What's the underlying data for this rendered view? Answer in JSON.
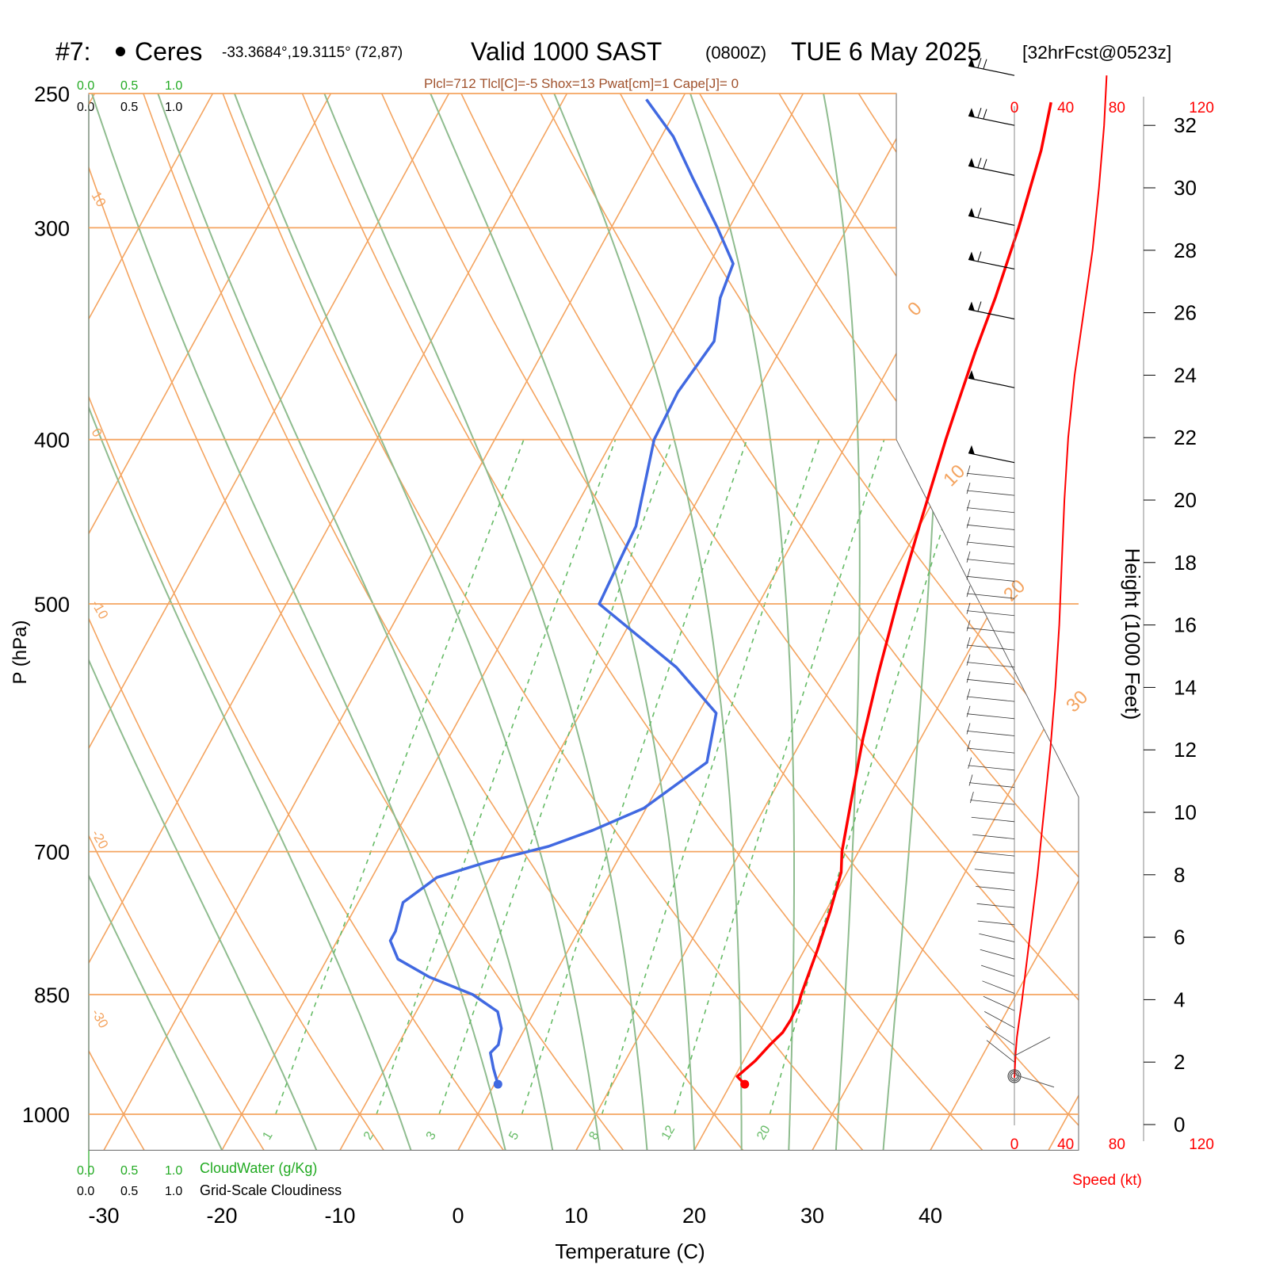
{
  "header": {
    "station_id": "#7:",
    "station_name": "Ceres",
    "coords": "-33.3684°,19.3115° (72,87)",
    "valid": "Valid 1000 SAST",
    "zulu": "(0800Z)",
    "date": "TUE 6 May 2025",
    "forecast": "[32hrFcst@0523z]",
    "indices": "Plcl=712 Tlcl[C]=-5 Shox=13 Pwat[cm]=1 Cape[J]= 0"
  },
  "colors": {
    "temperature": "#ff0000",
    "dewpoint": "#4169e1",
    "isotherm": "#f4a460",
    "dry_adiabat": "#f4a460",
    "moist_adiabat": "#8fbc8f",
    "mixing_ratio": "#66bb66",
    "speed": "#ff0000",
    "cloudwater": "#22aa22",
    "indices": "#a0522d"
  },
  "cloud_scales": {
    "top_green": [
      "0.0",
      "0.5",
      "1.0"
    ],
    "top_black": [
      "0.0",
      "0.5",
      "1.0"
    ],
    "bottom_green": [
      "0.0",
      "0.5",
      "1.0"
    ],
    "bottom_black": [
      "0.0",
      "0.5",
      "1.0"
    ],
    "cloudwater_label": "CloudWater (g/Kg)",
    "cloudiness_label": "Grid-Scale Cloudiness"
  },
  "chart_data": {
    "type": "line",
    "chart": "skew-T log-P sounding",
    "xlabel": "Temperature (C)",
    "ylabel": "P (hPa)",
    "right_ylabel": "Height (1000 Feet)",
    "speed_label": "Speed (kt)",
    "x_ticks": [
      "-30",
      "-20",
      "-10",
      "0",
      "10",
      "20",
      "30",
      "40"
    ],
    "x_tick_values": [
      -30,
      -20,
      -10,
      0,
      10,
      20,
      30,
      40
    ],
    "pressure_ticks": [
      "250",
      "300",
      "400",
      "500",
      "700",
      "850",
      "1000"
    ],
    "pressure_tick_values": [
      250,
      300,
      400,
      500,
      700,
      850,
      1000
    ],
    "height_ticks": [
      "0",
      "2",
      "4",
      "6",
      "8",
      "10",
      "12",
      "14",
      "16",
      "18",
      "20",
      "22",
      "24",
      "26",
      "28",
      "30",
      "32"
    ],
    "height_tick_values": [
      0,
      2,
      4,
      6,
      8,
      10,
      12,
      14,
      16,
      18,
      20,
      22,
      24,
      26,
      28,
      30,
      32
    ],
    "speed_ticks": [
      "0",
      "40",
      "80",
      "120"
    ],
    "speed_tick_values": [
      0,
      40,
      80,
      120
    ],
    "pressure_range_hpa": [
      250,
      1050
    ],
    "skew_isotherm_labels": [
      "10",
      "0",
      "-10",
      "-20",
      "-30"
    ],
    "skew_isotherm_label_values": [
      10,
      0,
      -10,
      -20,
      -30
    ],
    "isotherm_labels_right": [
      "0",
      "10",
      "20",
      "30"
    ],
    "isotherm_labels_right_values": [
      0,
      10,
      20,
      30
    ],
    "mixing_ratio_labels": [
      "1",
      "2",
      "3",
      "5",
      "8",
      "12",
      "20"
    ],
    "mixing_ratio_values": [
      1,
      2,
      3,
      5,
      8,
      12,
      20
    ],
    "series": [
      {
        "name": "Temperature",
        "pressure": [
          960,
          950,
          930,
          910,
          895,
          880,
          860,
          850,
          800,
          760,
          720,
          700,
          650,
          600,
          550,
          500,
          450,
          400,
          380,
          355,
          330,
          300,
          270,
          253
        ],
        "values": [
          21.2,
          20.2,
          21.0,
          21.5,
          22.0,
          22.1,
          22.0,
          21.8,
          21.1,
          20.4,
          19.5,
          18.6,
          16.9,
          15.1,
          13.4,
          11.7,
          10.0,
          8.2,
          7.5,
          6.6,
          5.8,
          4.5,
          2.8,
          1.4
        ]
      },
      {
        "name": "Dewpoint",
        "pressure": [
          960,
          940,
          920,
          910,
          890,
          870,
          850,
          830,
          810,
          790,
          780,
          750,
          725,
          710,
          695,
          680,
          660,
          620,
          580,
          545,
          500,
          450,
          400,
          375,
          350,
          330,
          315,
          300,
          280,
          265,
          252
        ],
        "values": [
          0.3,
          -0.8,
          -1.8,
          -1.5,
          -2.0,
          -3.1,
          -6.0,
          -10.5,
          -14.0,
          -15.5,
          -15.5,
          -16.2,
          -14.5,
          -11.0,
          -6.5,
          -3.5,
          -0.2,
          3.0,
          1.5,
          -4.0,
          -13.5,
          -14.0,
          -16.5,
          -16.7,
          -16.0,
          -17.5,
          -18.0,
          -21.0,
          -25.5,
          -29.0,
          -33.0
        ]
      }
    ],
    "wind_speed_profile": {
      "height_kft": [
        1.5,
        2.3,
        2.8,
        4.0,
        6.0,
        8.0,
        10.0,
        12.0,
        14.0,
        16.0,
        18.0,
        20.0,
        22.0,
        24.0,
        26.0,
        28.0,
        30.0,
        32.0,
        33.6
      ],
      "speed_kt": [
        0,
        1,
        2,
        6,
        12,
        18,
        23,
        28,
        32,
        35,
        37,
        39,
        42,
        47,
        54,
        61,
        66,
        70,
        72
      ]
    },
    "wind_barbs": {
      "height_kft": [
        33.6,
        32.0,
        30.4,
        28.8,
        27.4,
        25.8,
        23.6,
        21.2
      ],
      "knots": [
        65,
        65,
        65,
        60,
        55,
        55,
        50,
        50
      ]
    }
  }
}
